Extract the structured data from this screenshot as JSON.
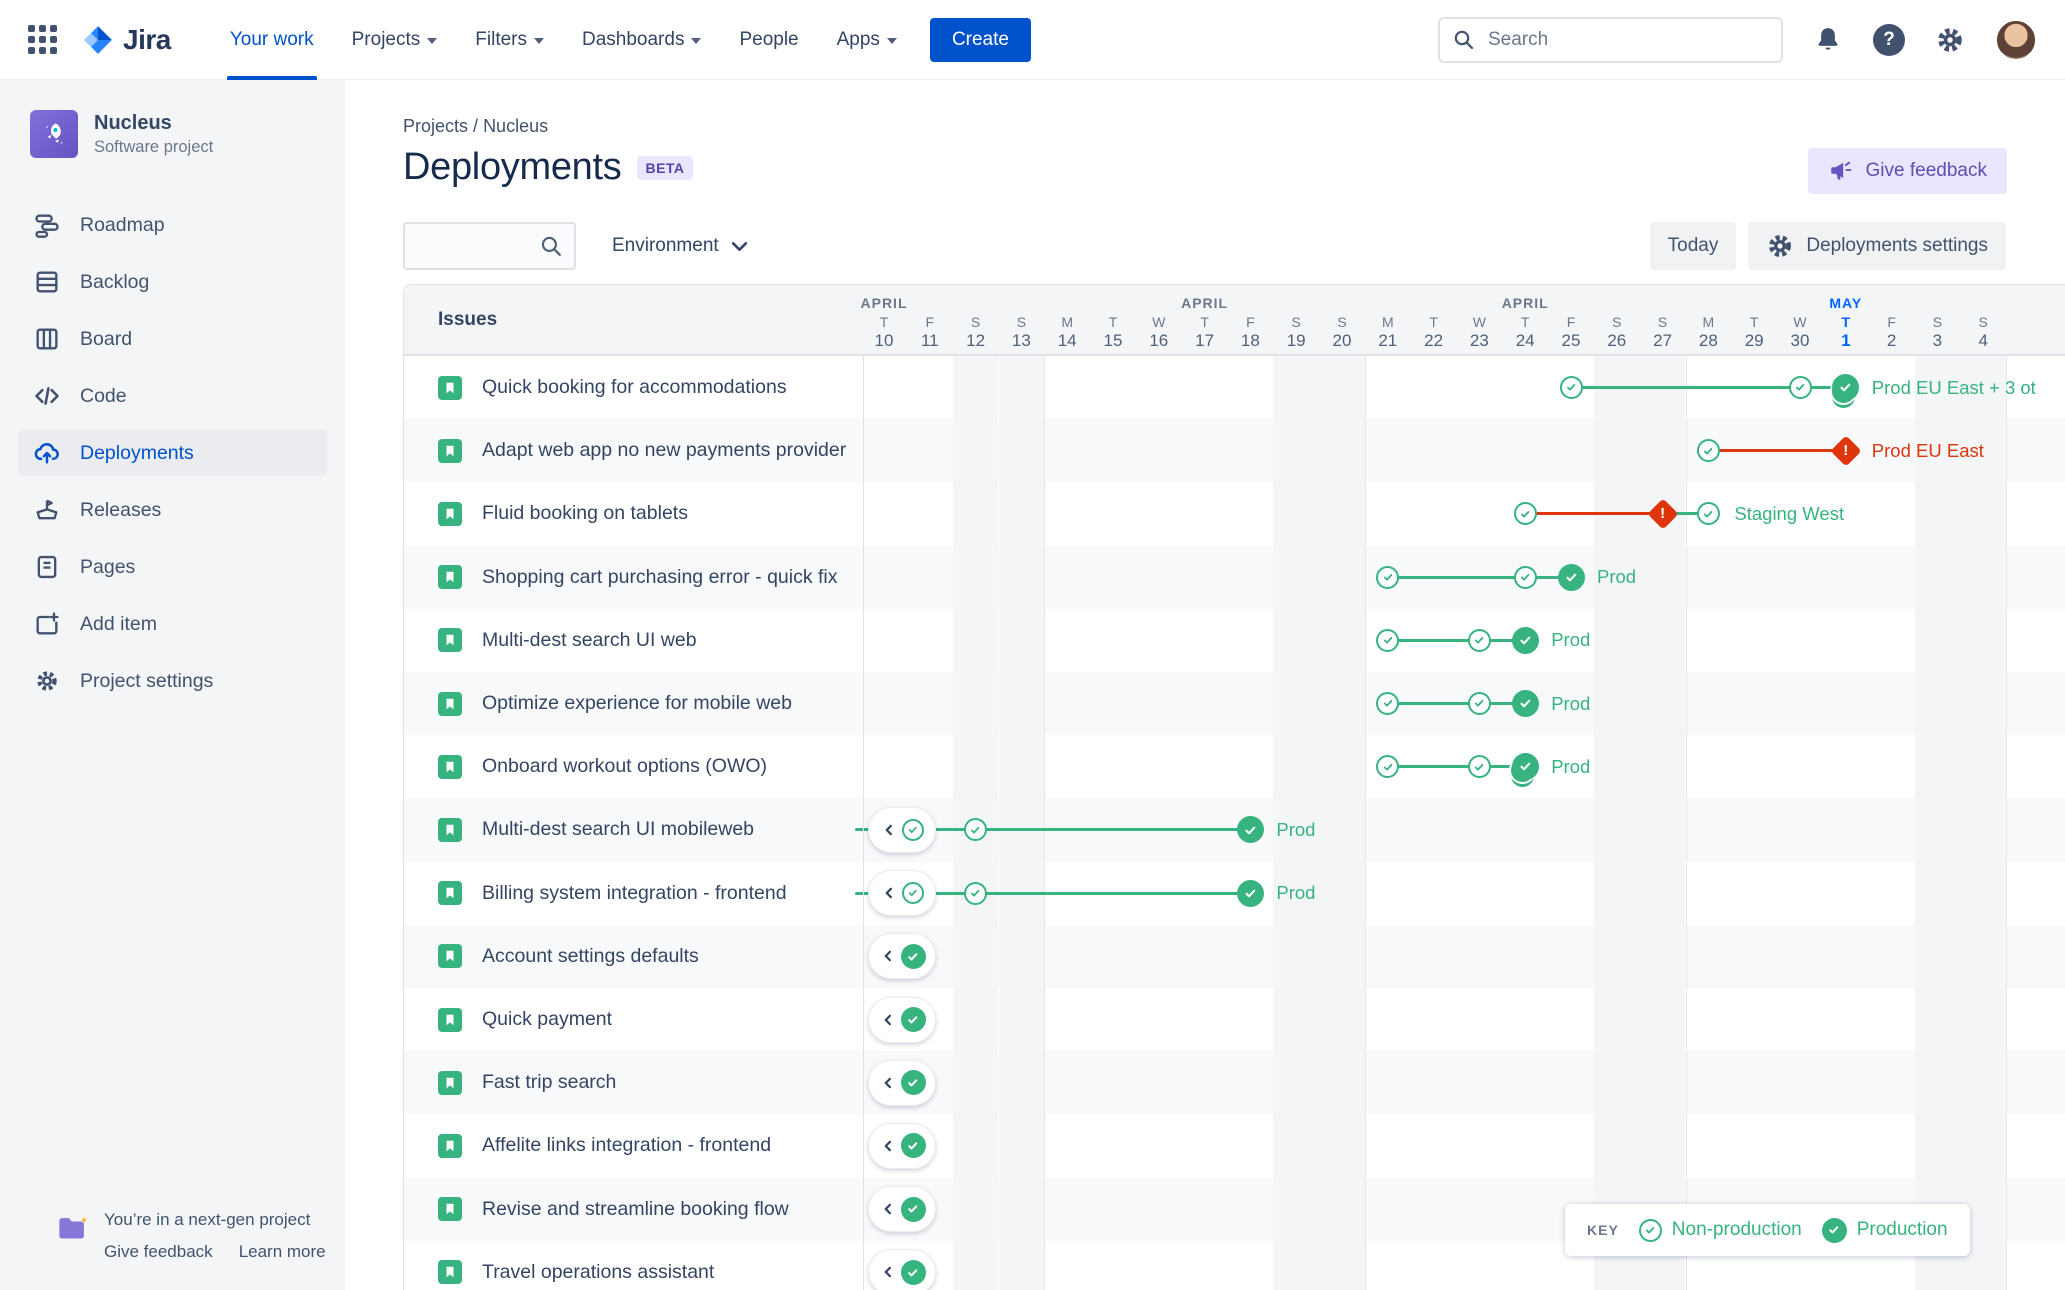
{
  "top_nav": {
    "logo_text": "Jira",
    "items": [
      {
        "label": "Your work",
        "active": true,
        "caret": false
      },
      {
        "label": "Projects",
        "active": false,
        "caret": true
      },
      {
        "label": "Filters",
        "active": false,
        "caret": true
      },
      {
        "label": "Dashboards",
        "active": false,
        "caret": true
      },
      {
        "label": "People",
        "active": false,
        "caret": false
      },
      {
        "label": "Apps",
        "active": false,
        "caret": true
      }
    ],
    "create_label": "Create",
    "search_placeholder": "Search"
  },
  "sidebar": {
    "project_name": "Nucleus",
    "project_type": "Software project",
    "items": [
      {
        "label": "Roadmap",
        "icon": "roadmap-icon",
        "active": false
      },
      {
        "label": "Backlog",
        "icon": "backlog-icon",
        "active": false
      },
      {
        "label": "Board",
        "icon": "board-icon",
        "active": false
      },
      {
        "label": "Code",
        "icon": "code-icon",
        "active": false
      },
      {
        "label": "Deployments",
        "icon": "deployments-icon",
        "active": true
      },
      {
        "label": "Releases",
        "icon": "releases-icon",
        "active": false
      },
      {
        "label": "Pages",
        "icon": "pages-icon",
        "active": false
      },
      {
        "label": "Add item",
        "icon": "add-item-icon",
        "active": false
      },
      {
        "label": "Project settings",
        "icon": "settings-icon",
        "active": false
      }
    ],
    "footer": {
      "message": "You’re in a next-gen project",
      "give_feedback": "Give feedback",
      "learn_more": "Learn more"
    }
  },
  "header": {
    "breadcrumb": [
      "Projects",
      "Nucleus"
    ],
    "title": "Deployments",
    "beta": "BETA",
    "give_feedback": "Give feedback",
    "environment": "Environment",
    "today": "Today",
    "settings": "Deployments settings",
    "search_value": ""
  },
  "timeline": {
    "issues_header": "Issues",
    "weeks": [
      {
        "month": "APRIL",
        "days_hidden_before": 3,
        "current": false,
        "days": [
          {
            "dow": "T",
            "num": "10",
            "id": "4-10"
          },
          {
            "dow": "F",
            "num": "11",
            "id": "4-11"
          },
          {
            "dow": "S",
            "num": "12",
            "id": "4-12",
            "weekend": true
          },
          {
            "dow": "S",
            "num": "13",
            "id": "4-13",
            "weekend": true
          }
        ]
      },
      {
        "month": "APRIL",
        "days_hidden_before": 0,
        "current": false,
        "days": [
          {
            "dow": "M",
            "num": "14",
            "id": "4-14"
          },
          {
            "dow": "T",
            "num": "15",
            "id": "4-15"
          },
          {
            "dow": "W",
            "num": "16",
            "id": "4-16"
          },
          {
            "dow": "T",
            "num": "17",
            "id": "4-17"
          },
          {
            "dow": "F",
            "num": "18",
            "id": "4-18"
          },
          {
            "dow": "S",
            "num": "19",
            "id": "4-19",
            "weekend": true
          },
          {
            "dow": "S",
            "num": "20",
            "id": "4-20",
            "weekend": true
          }
        ]
      },
      {
        "month": "APRIL",
        "days_hidden_before": 0,
        "current": false,
        "days": [
          {
            "dow": "M",
            "num": "21",
            "id": "4-21"
          },
          {
            "dow": "T",
            "num": "22",
            "id": "4-22"
          },
          {
            "dow": "W",
            "num": "23",
            "id": "4-23"
          },
          {
            "dow": "T",
            "num": "24",
            "id": "4-24"
          },
          {
            "dow": "F",
            "num": "25",
            "id": "4-25"
          },
          {
            "dow": "S",
            "num": "26",
            "id": "4-26",
            "weekend": true
          },
          {
            "dow": "S",
            "num": "27",
            "id": "4-27",
            "weekend": true
          }
        ]
      },
      {
        "month": "MAY",
        "days_hidden_before": 0,
        "current": true,
        "days": [
          {
            "dow": "M",
            "num": "28",
            "id": "4-28"
          },
          {
            "dow": "T",
            "num": "29",
            "id": "4-29"
          },
          {
            "dow": "W",
            "num": "30",
            "id": "4-30"
          },
          {
            "dow": "T",
            "num": "1",
            "id": "5-1",
            "today": true
          },
          {
            "dow": "F",
            "num": "2",
            "id": "5-2"
          },
          {
            "dow": "S",
            "num": "3",
            "id": "5-3",
            "weekend": true
          },
          {
            "dow": "S",
            "num": "4",
            "id": "5-4",
            "weekend": true
          }
        ]
      }
    ],
    "rows": [
      {
        "title": "Quick booking for accommodations",
        "markers": [
          {
            "type": "check",
            "day": "4-25"
          },
          {
            "type": "line",
            "from": "4-25",
            "to": "4-30",
            "color": "green"
          },
          {
            "type": "check",
            "day": "4-30"
          },
          {
            "type": "line",
            "from": "4-30",
            "to": "5-1",
            "color": "green"
          },
          {
            "type": "prod",
            "day": "5-1",
            "stack": true
          },
          {
            "type": "label",
            "day": "5-1",
            "text": "Prod EU East + 3 ot",
            "color": "green"
          }
        ]
      },
      {
        "title": "Adapt web app no new payments provider",
        "markers": [
          {
            "type": "check",
            "day": "4-28"
          },
          {
            "type": "line",
            "from": "4-28",
            "to": "5-1",
            "color": "red"
          },
          {
            "type": "warn",
            "day": "5-1"
          },
          {
            "type": "label",
            "day": "5-1",
            "text": "Prod EU East",
            "color": "red"
          }
        ]
      },
      {
        "title": "Fluid booking on tablets",
        "markers": [
          {
            "type": "check",
            "day": "4-24"
          },
          {
            "type": "line",
            "from": "4-24",
            "to": "4-27",
            "color": "red"
          },
          {
            "type": "warn",
            "day": "4-27"
          },
          {
            "type": "line",
            "from": "4-27",
            "to": "4-28",
            "color": "green"
          },
          {
            "type": "check",
            "day": "4-28"
          },
          {
            "type": "label",
            "day": "4-28",
            "text": "Staging West",
            "color": "green"
          }
        ]
      },
      {
        "title": "Shopping cart purchasing error - quick fix",
        "markers": [
          {
            "type": "check",
            "day": "4-21"
          },
          {
            "type": "line",
            "from": "4-21",
            "to": "4-24",
            "color": "green"
          },
          {
            "type": "check",
            "day": "4-24"
          },
          {
            "type": "line",
            "from": "4-24",
            "to": "4-25",
            "color": "green"
          },
          {
            "type": "prod",
            "day": "4-25"
          },
          {
            "type": "label",
            "day": "4-25",
            "text": "Prod",
            "color": "green"
          }
        ]
      },
      {
        "title": "Multi-dest search UI web",
        "markers": [
          {
            "type": "check",
            "day": "4-21"
          },
          {
            "type": "line",
            "from": "4-21",
            "to": "4-23",
            "color": "green"
          },
          {
            "type": "check",
            "day": "4-23"
          },
          {
            "type": "line",
            "from": "4-23",
            "to": "4-24",
            "color": "green"
          },
          {
            "type": "prod",
            "day": "4-24"
          },
          {
            "type": "label",
            "day": "4-24",
            "text": "Prod",
            "color": "green"
          }
        ]
      },
      {
        "title": "Optimize experience for mobile web",
        "markers": [
          {
            "type": "check",
            "day": "4-21"
          },
          {
            "type": "line",
            "from": "4-21",
            "to": "4-23",
            "color": "green"
          },
          {
            "type": "check",
            "day": "4-23"
          },
          {
            "type": "line",
            "from": "4-23",
            "to": "4-24",
            "color": "green"
          },
          {
            "type": "prod",
            "day": "4-24"
          },
          {
            "type": "label",
            "day": "4-24",
            "text": "Prod",
            "color": "green"
          }
        ]
      },
      {
        "title": "Onboard workout options (OWO)",
        "markers": [
          {
            "type": "check",
            "day": "4-21"
          },
          {
            "type": "line",
            "from": "4-21",
            "to": "4-23",
            "color": "green"
          },
          {
            "type": "check",
            "day": "4-23"
          },
          {
            "type": "line",
            "from": "4-23",
            "to": "4-24",
            "color": "green"
          },
          {
            "type": "prod",
            "day": "4-24",
            "stack": true
          },
          {
            "type": "label",
            "day": "4-24",
            "text": "Prod",
            "color": "green"
          }
        ]
      },
      {
        "title": "Multi-dest search UI mobileweb",
        "markers": [
          {
            "type": "stub"
          },
          {
            "type": "pill",
            "badge": "check"
          },
          {
            "type": "line",
            "from": "4-11",
            "to": "4-12",
            "color": "green"
          },
          {
            "type": "check",
            "day": "4-12"
          },
          {
            "type": "line",
            "from": "4-12",
            "to": "4-18",
            "color": "green"
          },
          {
            "type": "prod",
            "day": "4-18"
          },
          {
            "type": "label",
            "day": "4-18",
            "text": "Prod",
            "color": "green"
          }
        ]
      },
      {
        "title": "Billing system integration - frontend",
        "markers": [
          {
            "type": "stub"
          },
          {
            "type": "pill",
            "badge": "check"
          },
          {
            "type": "line",
            "from": "4-11",
            "to": "4-12",
            "color": "green"
          },
          {
            "type": "check",
            "day": "4-12"
          },
          {
            "type": "line",
            "from": "4-12",
            "to": "4-18",
            "color": "green"
          },
          {
            "type": "prod",
            "day": "4-18"
          },
          {
            "type": "label",
            "day": "4-18",
            "text": "Prod",
            "color": "green"
          }
        ]
      },
      {
        "title": "Account settings defaults",
        "markers": [
          {
            "type": "pill",
            "badge": "prod"
          }
        ]
      },
      {
        "title": "Quick payment",
        "markers": [
          {
            "type": "pill",
            "badge": "prod"
          }
        ]
      },
      {
        "title": "Fast trip search",
        "markers": [
          {
            "type": "pill",
            "badge": "prod"
          }
        ]
      },
      {
        "title": "Affelite links integration - frontend",
        "markers": [
          {
            "type": "pill",
            "badge": "prod"
          }
        ]
      },
      {
        "title": "Revise and streamline booking flow",
        "markers": [
          {
            "type": "pill",
            "badge": "prod"
          }
        ]
      },
      {
        "title": "Travel operations assistant",
        "markers": [
          {
            "type": "pill",
            "badge": "prod"
          }
        ],
        "partial": true
      }
    ],
    "key": {
      "label": "KEY",
      "non_production": "Non-production",
      "production": "Production"
    }
  },
  "colors": {
    "green": "#36B37E",
    "red": "#DE350B",
    "blue": "#0052CC",
    "today_blue": "#0065FF",
    "purple": "#6554C0",
    "navy": "#344563"
  }
}
